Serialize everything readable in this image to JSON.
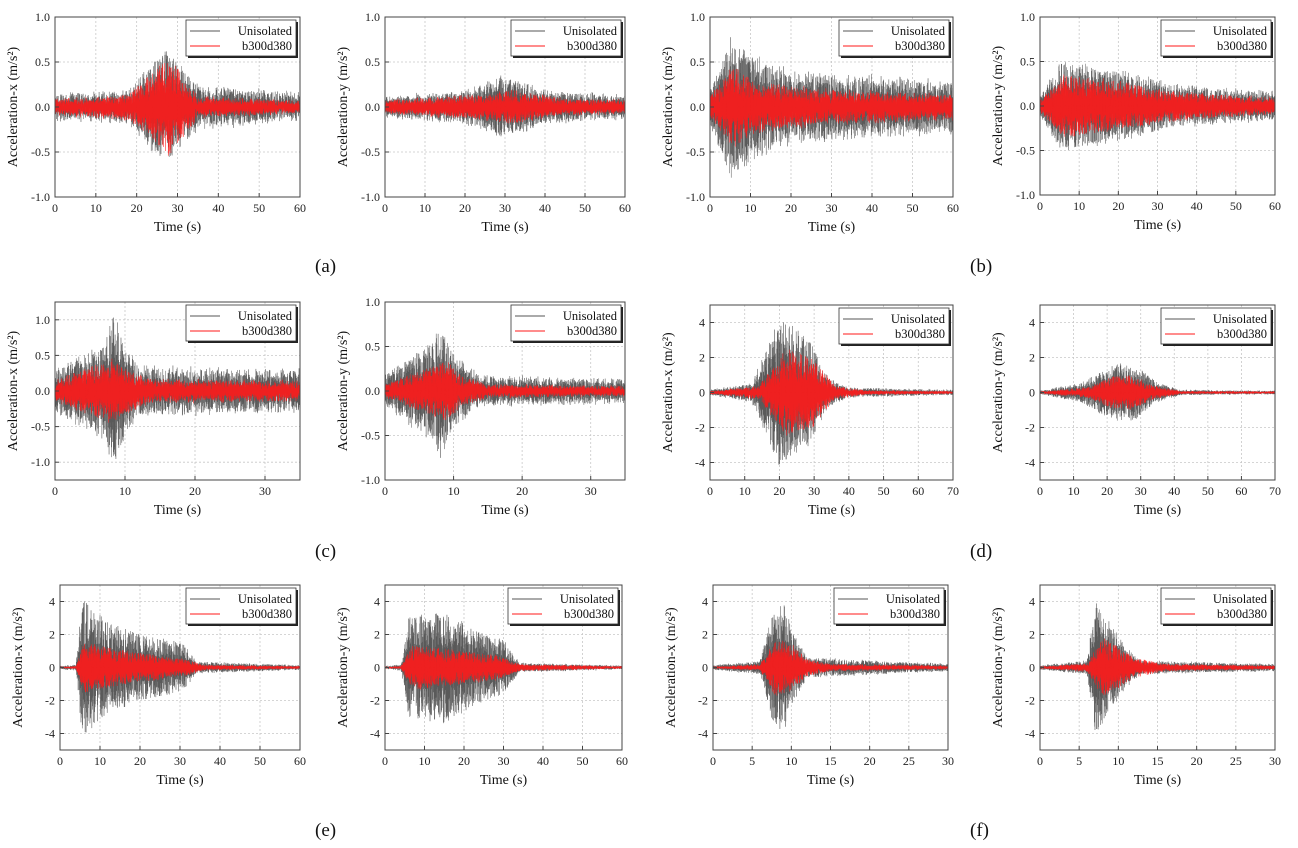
{
  "figure": {
    "colors": {
      "unisolated": "#555555",
      "isolated": "#ff1a1a",
      "grid": "#c8c8c8",
      "axis": "#444444"
    },
    "legend_items": [
      "Unisolated",
      "b300d380"
    ],
    "xlabel": "Time (s)",
    "captions": [
      "(a)",
      "(b)",
      "(c)",
      "(d)",
      "(e)",
      "(f)"
    ]
  },
  "chart_data": [
    {
      "type": "line",
      "panel": "a-x",
      "ylabel": "Acceleration-x (m/s²)",
      "xlim": [
        0,
        60
      ],
      "ylim": [
        -1.0,
        1.0
      ],
      "xticks": [
        0,
        10,
        20,
        30,
        40,
        50,
        60
      ],
      "yticks": [
        -1.0,
        -0.5,
        0.0,
        0.5,
        1.0
      ],
      "ytick_labels": [
        "-1.0",
        "-0.5",
        "0.0",
        "0.5",
        "1.0"
      ],
      "series": [
        {
          "name": "Unisolated",
          "noise": 0.08,
          "peak": 0.65,
          "envelope": [
            [
              0,
              0.2
            ],
            [
              18,
              0.25
            ],
            [
              27,
              1
            ],
            [
              35,
              0.35
            ],
            [
              60,
              0.2
            ]
          ]
        },
        {
          "name": "b300d380",
          "noise": 0.04,
          "peak": 0.55,
          "envelope": [
            [
              0,
              0.15
            ],
            [
              18,
              0.25
            ],
            [
              28,
              1
            ],
            [
              35,
              0.2
            ],
            [
              60,
              0.12
            ]
          ]
        }
      ]
    },
    {
      "type": "line",
      "panel": "a-y",
      "ylabel": "Acceleration-y (m/s²)",
      "xlim": [
        0,
        60
      ],
      "ylim": [
        -1.0,
        1.0
      ],
      "xticks": [
        0,
        10,
        20,
        30,
        40,
        50,
        60
      ],
      "yticks": [
        -1.0,
        -0.5,
        0.0,
        0.5,
        1.0
      ],
      "ytick_labels": [
        "-1.0",
        "-0.5",
        "0.0",
        "0.5",
        "1.0"
      ],
      "series": [
        {
          "name": "Unisolated",
          "noise": 0.05,
          "peak": 0.35,
          "envelope": [
            [
              0,
              0.3
            ],
            [
              20,
              0.5
            ],
            [
              30,
              1
            ],
            [
              40,
              0.5
            ],
            [
              60,
              0.35
            ]
          ]
        },
        {
          "name": "b300d380",
          "noise": 0.03,
          "peak": 0.18,
          "envelope": [
            [
              0,
              0.4
            ],
            [
              25,
              0.8
            ],
            [
              32,
              1
            ],
            [
              45,
              0.5
            ],
            [
              60,
              0.4
            ]
          ]
        }
      ]
    },
    {
      "type": "line",
      "panel": "b-x",
      "ylabel": "Acceleration-x (m/s²)",
      "xlim": [
        0,
        60
      ],
      "ylim": [
        -1.0,
        1.0
      ],
      "xticks": [
        0,
        10,
        20,
        30,
        40,
        50,
        60
      ],
      "yticks": [
        -1.0,
        -0.5,
        0.0,
        0.5,
        1.0
      ],
      "ytick_labels": [
        "-1.0",
        "-0.5",
        "0.0",
        "0.5",
        "1.0"
      ],
      "series": [
        {
          "name": "Unisolated",
          "noise": 0.1,
          "peak": 0.75,
          "envelope": [
            [
              0,
              0.25
            ],
            [
              5,
              1
            ],
            [
              10,
              0.8
            ],
            [
              20,
              0.5
            ],
            [
              60,
              0.35
            ]
          ]
        },
        {
          "name": "b300d380",
          "noise": 0.05,
          "peak": 0.45,
          "envelope": [
            [
              0,
              0.3
            ],
            [
              6,
              1
            ],
            [
              12,
              0.6
            ],
            [
              30,
              0.4
            ],
            [
              60,
              0.3
            ]
          ]
        }
      ]
    },
    {
      "type": "line",
      "panel": "b-y",
      "ylabel": "Acceleration-y (m/s²)",
      "xlim": [
        0,
        60
      ],
      "ylim": [
        -1.0,
        1.0
      ],
      "xticks": [
        0,
        10,
        20,
        30,
        40,
        50,
        60
      ],
      "yticks": [
        -1.0,
        -0.5,
        0.0,
        0.5,
        1.0
      ],
      "ytick_labels": [
        "-1.0",
        "-0.5",
        "0.0",
        "0.5",
        "1.0"
      ],
      "series": [
        {
          "name": "Unisolated",
          "noise": 0.05,
          "peak": 0.5,
          "envelope": [
            [
              0,
              0.2
            ],
            [
              5,
              1
            ],
            [
              20,
              0.8
            ],
            [
              35,
              0.45
            ],
            [
              60,
              0.3
            ]
          ]
        },
        {
          "name": "b300d380",
          "noise": 0.03,
          "peak": 0.35,
          "envelope": [
            [
              0,
              0.2
            ],
            [
              6,
              1
            ],
            [
              20,
              0.8
            ],
            [
              32,
              0.5
            ],
            [
              60,
              0.25
            ]
          ]
        }
      ]
    },
    {
      "type": "line",
      "panel": "c-x",
      "ylabel": "Acceleration-x (m/s²)",
      "xlim": [
        0,
        35
      ],
      "ylim": [
        -1.25,
        1.25
      ],
      "xticks": [
        0,
        10,
        20,
        30
      ],
      "yticks": [
        -1.0,
        -0.5,
        0.0,
        0.5,
        1.0
      ],
      "ytick_labels": [
        "-1.0",
        "-0.5",
        "0.0",
        "0.5",
        "1.0"
      ],
      "series": [
        {
          "name": "Unisolated",
          "noise": 0.1,
          "peak": 1.1,
          "envelope": [
            [
              0,
              0.25
            ],
            [
              7,
              0.6
            ],
            [
              8.5,
              1
            ],
            [
              10,
              0.6
            ],
            [
              12,
              0.3
            ],
            [
              35,
              0.25
            ]
          ]
        },
        {
          "name": "b300d380",
          "noise": 0.05,
          "peak": 0.45,
          "envelope": [
            [
              0,
              0.3
            ],
            [
              8,
              1
            ],
            [
              10,
              0.7
            ],
            [
              14,
              0.35
            ],
            [
              35,
              0.3
            ]
          ]
        }
      ]
    },
    {
      "type": "line",
      "panel": "c-y",
      "ylabel": "Acceleration-y (m/s²)",
      "xlim": [
        0,
        35
      ],
      "ylim": [
        -1.0,
        1.0
      ],
      "xticks": [
        0,
        10,
        20,
        30
      ],
      "yticks": [
        -1.0,
        -0.5,
        0.0,
        0.5,
        1.0
      ],
      "ytick_labels": [
        "-1.0",
        "-0.5",
        "0.0",
        "0.5",
        "1.0"
      ],
      "series": [
        {
          "name": "Unisolated",
          "noise": 0.06,
          "peak": 0.8,
          "envelope": [
            [
              0,
              0.2
            ],
            [
              7,
              0.7
            ],
            [
              8,
              1
            ],
            [
              10,
              0.5
            ],
            [
              14,
              0.2
            ],
            [
              35,
              0.15
            ]
          ]
        },
        {
          "name": "b300d380",
          "noise": 0.03,
          "peak": 0.35,
          "envelope": [
            [
              0,
              0.2
            ],
            [
              7,
              0.8
            ],
            [
              9,
              1
            ],
            [
              11,
              0.5
            ],
            [
              15,
              0.2
            ],
            [
              35,
              0.15
            ]
          ]
        }
      ]
    },
    {
      "type": "line",
      "panel": "d-x",
      "ylabel": "Acceleration-x (m/s²)",
      "xlim": [
        0,
        70
      ],
      "ylim": [
        -5,
        5
      ],
      "xticks": [
        0,
        10,
        20,
        30,
        40,
        50,
        60,
        70
      ],
      "yticks": [
        -4,
        -2,
        0,
        2,
        4
      ],
      "ytick_labels": [
        "-4",
        "-2",
        "0",
        "2",
        "4"
      ],
      "series": [
        {
          "name": "Unisolated",
          "noise": 0.1,
          "peak": 4.3,
          "envelope": [
            [
              0,
              0.03
            ],
            [
              12,
              0.12
            ],
            [
              20,
              1
            ],
            [
              28,
              0.75
            ],
            [
              34,
              0.2
            ],
            [
              40,
              0.06
            ],
            [
              70,
              0.03
            ]
          ]
        },
        {
          "name": "b300d380",
          "noise": 0.05,
          "peak": 2.5,
          "envelope": [
            [
              0,
              0.03
            ],
            [
              14,
              0.15
            ],
            [
              22,
              1
            ],
            [
              30,
              0.8
            ],
            [
              36,
              0.15
            ],
            [
              45,
              0.05
            ],
            [
              70,
              0.03
            ]
          ]
        }
      ]
    },
    {
      "type": "line",
      "panel": "d-y",
      "ylabel": "Acceleration-y (m/s²)",
      "xlim": [
        0,
        70
      ],
      "ylim": [
        -5,
        5
      ],
      "xticks": [
        0,
        10,
        20,
        30,
        40,
        50,
        60,
        70
      ],
      "yticks": [
        -4,
        -2,
        0,
        2,
        4
      ],
      "ytick_labels": [
        "-4",
        "-2",
        "0",
        "2",
        "4"
      ],
      "series": [
        {
          "name": "Unisolated",
          "noise": 0.06,
          "peak": 1.8,
          "envelope": [
            [
              0,
              0.05
            ],
            [
              12,
              0.3
            ],
            [
              20,
              0.8
            ],
            [
              27,
              1
            ],
            [
              35,
              0.3
            ],
            [
              42,
              0.08
            ],
            [
              70,
              0.05
            ]
          ]
        },
        {
          "name": "b300d380",
          "noise": 0.04,
          "peak": 1.0,
          "envelope": [
            [
              0,
              0.05
            ],
            [
              14,
              0.3
            ],
            [
              21,
              0.9
            ],
            [
              27,
              1
            ],
            [
              34,
              0.4
            ],
            [
              42,
              0.08
            ],
            [
              70,
              0.06
            ]
          ]
        }
      ]
    },
    {
      "type": "line",
      "panel": "e-x",
      "ylabel": "Acceleration-x (m/s²)",
      "xlim": [
        0,
        60
      ],
      "ylim": [
        -5,
        5
      ],
      "xticks": [
        0,
        10,
        20,
        30,
        40,
        50,
        60
      ],
      "yticks": [
        -4,
        -2,
        0,
        2,
        4
      ],
      "ytick_labels": [
        "-4",
        "-2",
        "0",
        "2",
        "4"
      ],
      "series": [
        {
          "name": "Unisolated",
          "noise": 0.08,
          "peak": 4.2,
          "envelope": [
            [
              0,
              0.02
            ],
            [
              4,
              0.04
            ],
            [
              5.5,
              1
            ],
            [
              12,
              0.65
            ],
            [
              22,
              0.45
            ],
            [
              31,
              0.35
            ],
            [
              34,
              0.08
            ],
            [
              60,
              0.03
            ]
          ]
        },
        {
          "name": "b300d380",
          "noise": 0.05,
          "peak": 1.6,
          "envelope": [
            [
              0,
              0.02
            ],
            [
              4,
              0.05
            ],
            [
              6,
              1
            ],
            [
              14,
              0.7
            ],
            [
              25,
              0.45
            ],
            [
              32,
              0.3
            ],
            [
              36,
              0.1
            ],
            [
              60,
              0.05
            ]
          ]
        }
      ]
    },
    {
      "type": "line",
      "panel": "e-y",
      "ylabel": "Acceleration-y (m/s²)",
      "xlim": [
        0,
        60
      ],
      "ylim": [
        -5,
        5
      ],
      "xticks": [
        0,
        10,
        20,
        30,
        40,
        50,
        60
      ],
      "yticks": [
        -4,
        -2,
        0,
        2,
        4
      ],
      "ytick_labels": [
        "-4",
        "-2",
        "0",
        "2",
        "4"
      ],
      "series": [
        {
          "name": "Unisolated",
          "noise": 0.08,
          "peak": 3.4,
          "envelope": [
            [
              0,
              0.02
            ],
            [
              4,
              0.05
            ],
            [
              6,
              0.9
            ],
            [
              15,
              1
            ],
            [
              25,
              0.6
            ],
            [
              30,
              0.5
            ],
            [
              34,
              0.08
            ],
            [
              60,
              0.03
            ]
          ]
        },
        {
          "name": "b300d380",
          "noise": 0.05,
          "peak": 1.4,
          "envelope": [
            [
              0,
              0.02
            ],
            [
              4,
              0.05
            ],
            [
              7,
              1
            ],
            [
              16,
              0.8
            ],
            [
              28,
              0.55
            ],
            [
              34,
              0.15
            ],
            [
              60,
              0.05
            ]
          ]
        }
      ]
    },
    {
      "type": "line",
      "panel": "f-x",
      "ylabel": "Acceleration-x (m/s²)",
      "xlim": [
        0,
        30
      ],
      "ylim": [
        -5,
        5
      ],
      "xticks": [
        0,
        5,
        10,
        15,
        20,
        25,
        30
      ],
      "yticks": [
        -4,
        -2,
        0,
        2,
        4
      ],
      "ytick_labels": [
        "-4",
        "-2",
        "0",
        "2",
        "4"
      ],
      "series": [
        {
          "name": "Unisolated",
          "noise": 0.08,
          "peak": 4.0,
          "envelope": [
            [
              0,
              0.03
            ],
            [
              6,
              0.1
            ],
            [
              7.5,
              0.8
            ],
            [
              9,
              1
            ],
            [
              10,
              0.6
            ],
            [
              12,
              0.15
            ],
            [
              30,
              0.05
            ]
          ]
        },
        {
          "name": "b300d380",
          "noise": 0.05,
          "peak": 1.8,
          "envelope": [
            [
              0,
              0.03
            ],
            [
              6,
              0.1
            ],
            [
              8,
              1
            ],
            [
              10,
              0.8
            ],
            [
              12,
              0.3
            ],
            [
              15,
              0.12
            ],
            [
              30,
              0.06
            ]
          ]
        }
      ]
    },
    {
      "type": "line",
      "panel": "f-y",
      "ylabel": "Acceleration-y (m/s²)",
      "xlim": [
        0,
        30
      ],
      "ylim": [
        -5,
        5
      ],
      "xticks": [
        0,
        5,
        10,
        15,
        20,
        25,
        30
      ],
      "yticks": [
        -4,
        -2,
        0,
        2,
        4
      ],
      "ytick_labels": [
        "-4",
        "-2",
        "0",
        "2",
        "4"
      ],
      "series": [
        {
          "name": "Unisolated",
          "noise": 0.08,
          "peak": 4.0,
          "envelope": [
            [
              0,
              0.03
            ],
            [
              6,
              0.1
            ],
            [
              7,
              1
            ],
            [
              9,
              0.7
            ],
            [
              11,
              0.3
            ],
            [
              13,
              0.1
            ],
            [
              30,
              0.05
            ]
          ]
        },
        {
          "name": "b300d380",
          "noise": 0.05,
          "peak": 1.8,
          "envelope": [
            [
              0,
              0.03
            ],
            [
              6,
              0.15
            ],
            [
              8,
              1
            ],
            [
              10,
              0.7
            ],
            [
              12,
              0.35
            ],
            [
              16,
              0.12
            ],
            [
              30,
              0.06
            ]
          ]
        }
      ]
    }
  ]
}
